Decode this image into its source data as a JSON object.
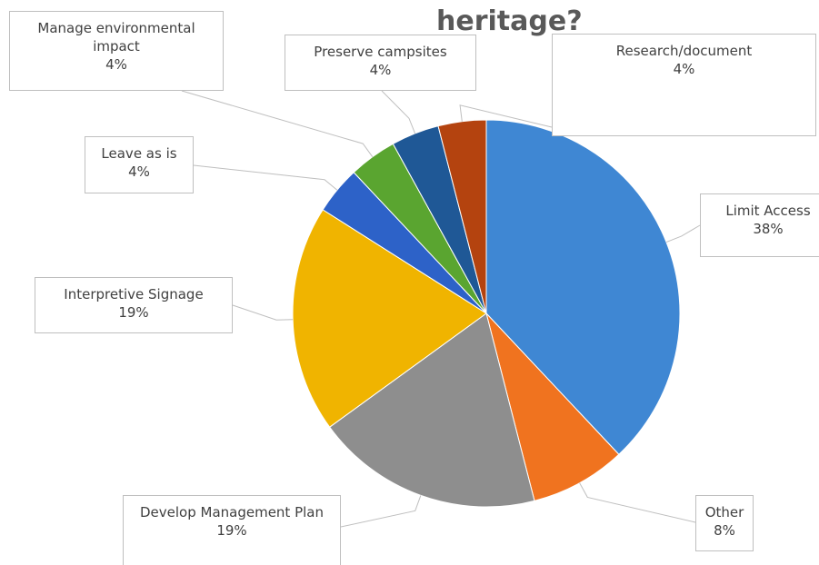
{
  "chart_data": {
    "type": "pie",
    "title": "heritage?",
    "categories": [
      "Limit Access",
      "Other",
      "Develop Management Plan",
      "Interpretive Signage",
      "Leave as is",
      "Manage environmental impact",
      "Preserve campsites",
      "Research/document"
    ],
    "values": [
      38,
      8,
      19,
      19,
      4,
      4,
      4,
      4
    ],
    "value_labels": [
      "38%",
      "8%",
      "19%",
      "19%",
      "4%",
      "4%",
      "4%",
      "4%"
    ],
    "colors": [
      "#3f87d3",
      "#f0731f",
      "#8e8e8e",
      "#f0b400",
      "#2d62c8",
      "#5aa530",
      "#1f5896",
      "#b4430f"
    ]
  }
}
